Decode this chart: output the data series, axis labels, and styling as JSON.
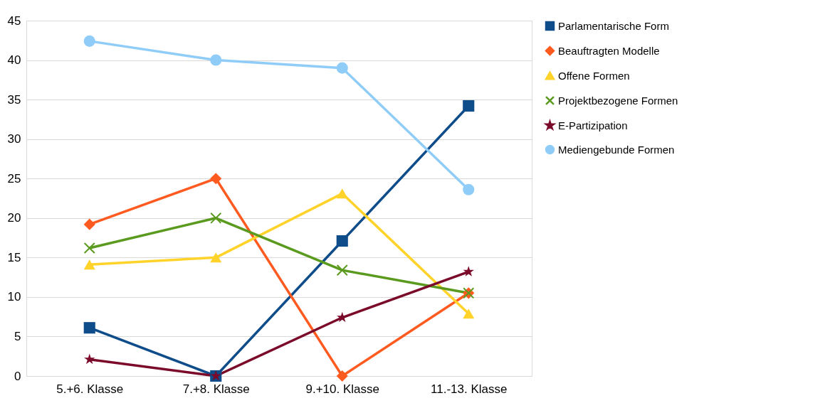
{
  "chart_data": {
    "type": "line",
    "categories": [
      "5.+6. Klasse",
      "7.+8. Klasse",
      "9.+10. Klasse",
      "11.-13. Klasse"
    ],
    "ylim": [
      0,
      45
    ],
    "yticks": [
      0,
      5,
      10,
      15,
      20,
      25,
      30,
      35,
      40,
      45
    ],
    "grid": "y",
    "legend": "right",
    "series": [
      {
        "name": "Parlamentarische Form",
        "color": "#0f4c8a",
        "marker": "square",
        "values": [
          6.1,
          0,
          17.1,
          34.2
        ]
      },
      {
        "name": "Beauftragten Modelle",
        "color": "#ff5a1f",
        "marker": "diamond",
        "values": [
          19.2,
          25,
          0,
          10.5
        ]
      },
      {
        "name": "Offene Formen",
        "color": "#ffd32a",
        "marker": "triangle",
        "values": [
          14.1,
          15,
          23.1,
          7.9
        ]
      },
      {
        "name": "Projektbezogene Formen",
        "color": "#5a9a1e",
        "marker": "cross",
        "values": [
          16.2,
          20,
          13.4,
          10.5
        ]
      },
      {
        "name": "E-Partizipation",
        "color": "#7b0a2a",
        "marker": "star",
        "values": [
          2.1,
          0,
          7.4,
          13.2
        ]
      },
      {
        "name": "Mediengebunde Formen",
        "color": "#8fcdf8",
        "marker": "circle",
        "values": [
          42.4,
          40,
          39,
          23.6
        ]
      }
    ]
  }
}
